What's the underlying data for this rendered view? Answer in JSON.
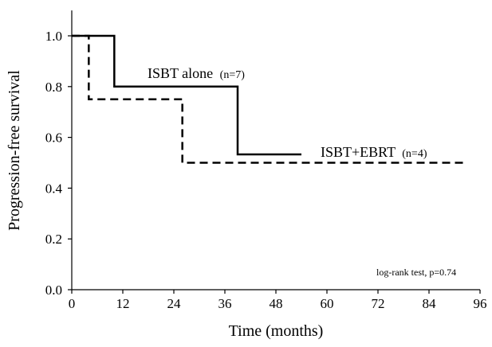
{
  "chart_data": {
    "type": "line",
    "step": true,
    "xlabel": "Time (months)",
    "ylabel": "Progression-free survival",
    "xlim": [
      0,
      96
    ],
    "ylim": [
      0,
      1.1
    ],
    "x_ticks": [
      0,
      12,
      24,
      36,
      48,
      60,
      72,
      84,
      96
    ],
    "x_tick_labels": [
      "0",
      "12",
      "24",
      "36",
      "48",
      "60",
      "72",
      "84",
      "96"
    ],
    "y_ticks": [
      0,
      0.2,
      0.4,
      0.6,
      0.8,
      1.0
    ],
    "y_tick_labels": [
      "0.0",
      "0.2",
      "0.4",
      "0.6",
      "0.8",
      "1.0"
    ],
    "grid": false,
    "series": [
      {
        "name": "ISBT alone",
        "n_label": "(n=7)",
        "line_style": "solid",
        "color": "#000000",
        "points": [
          [
            0,
            1.0
          ],
          [
            10,
            1.0
          ],
          [
            10,
            0.8
          ],
          [
            39,
            0.8
          ],
          [
            39,
            0.533
          ],
          [
            54,
            0.533
          ]
        ]
      },
      {
        "name": "ISBT+EBRT",
        "n_label": "(n=4)",
        "line_style": "dashed",
        "color": "#000000",
        "points": [
          [
            0,
            1.0
          ],
          [
            4,
            1.0
          ],
          [
            4,
            0.75
          ],
          [
            26,
            0.75
          ],
          [
            26,
            0.5
          ],
          [
            93,
            0.5
          ]
        ]
      }
    ],
    "annotation": "log-rank test, p=0.74"
  }
}
